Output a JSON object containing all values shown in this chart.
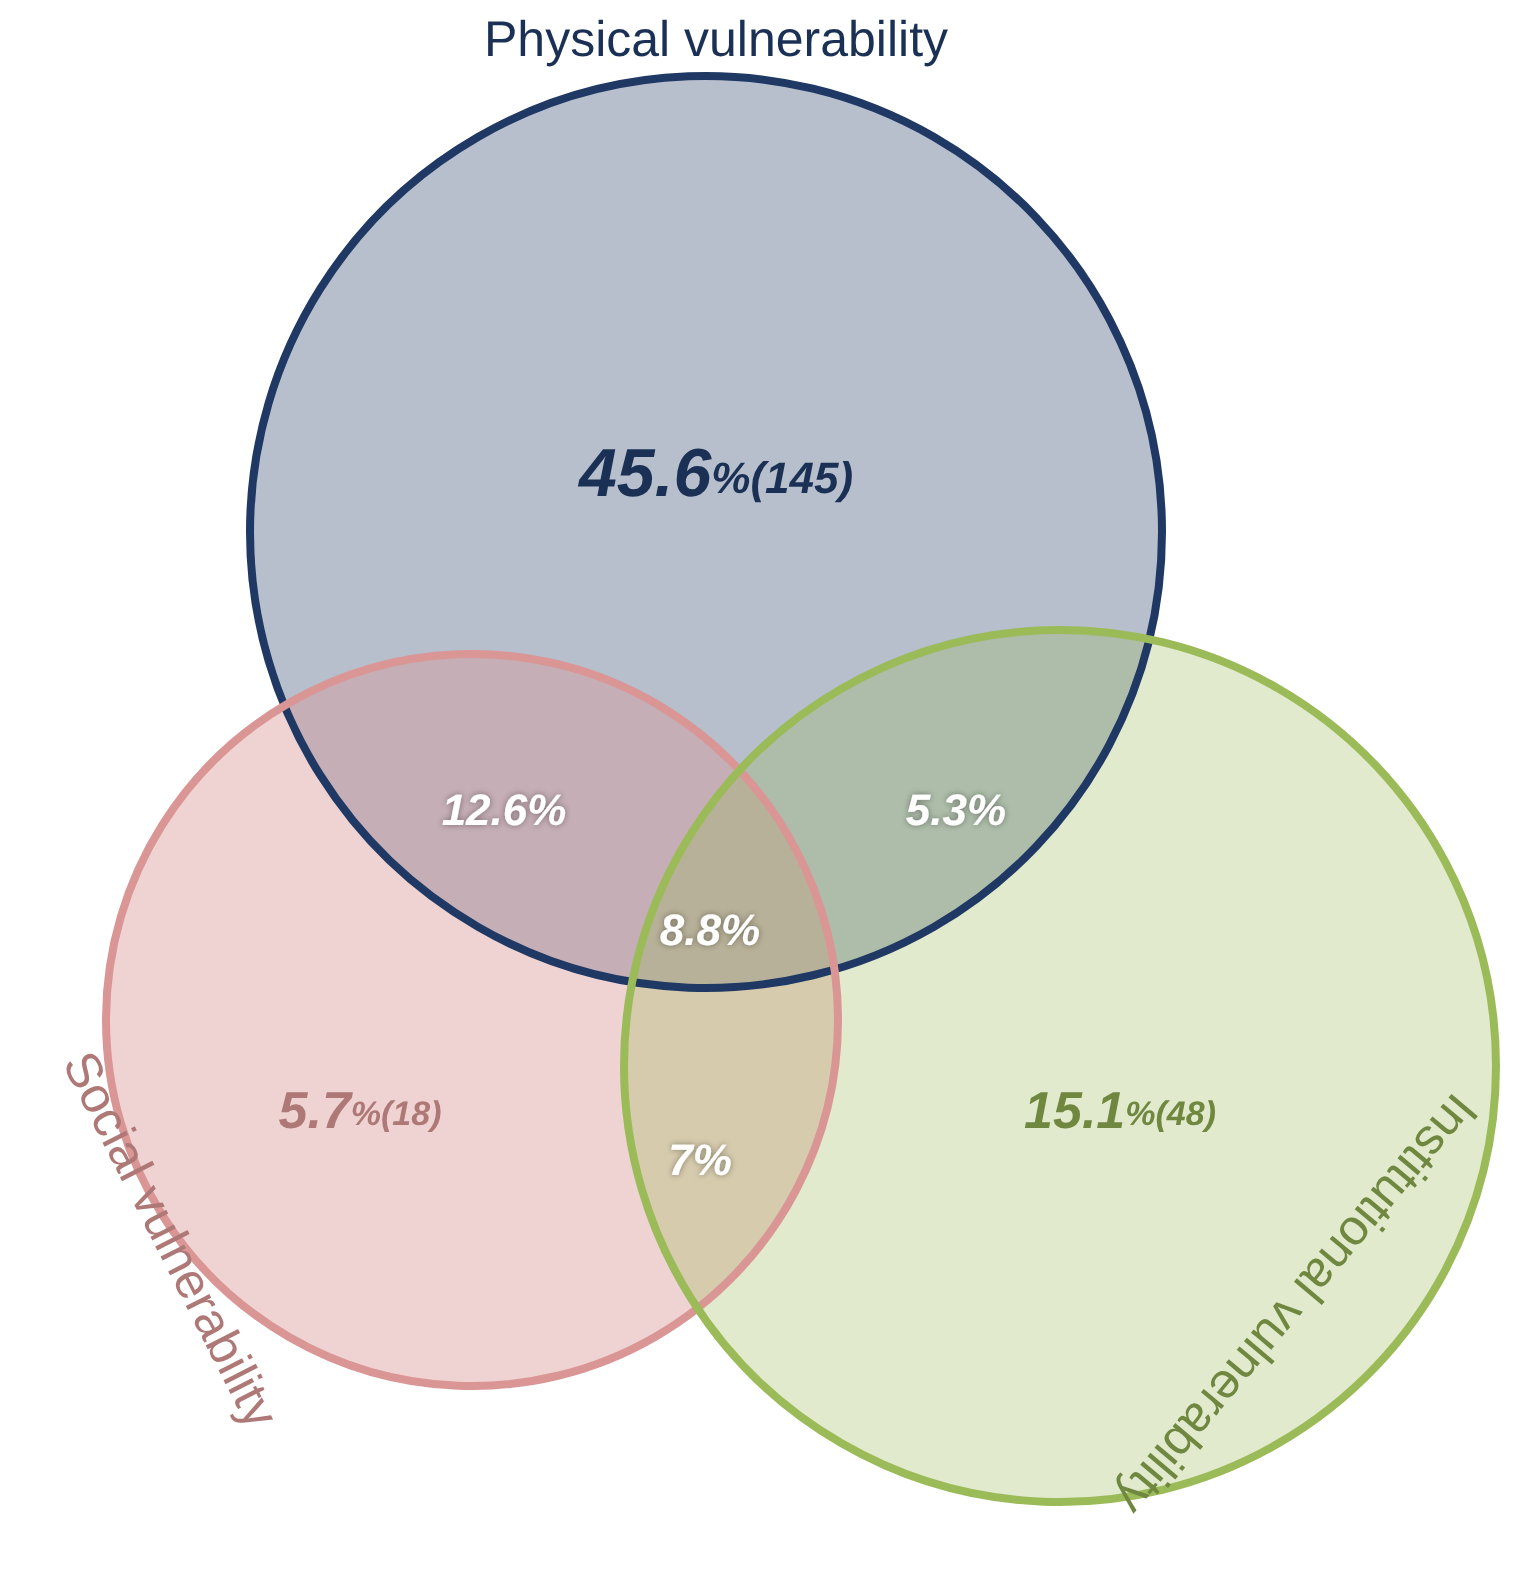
{
  "chart_data": {
    "type": "other",
    "categories": [
      "Physical vulnerability",
      "Social vulnerability",
      "Institutional vulnerability"
    ],
    "values": [
      45.6,
      5.7,
      15.1
    ],
    "value_labels": [
      "45.6%(145)",
      "5.7%(18)",
      "15.1%(48)"
    ],
    "colors": [
      "#1f3864",
      "#d99694",
      "#9bbb59"
    ],
    "annotations": [
      "12.6%",
      "5.3%",
      "8.8%",
      "7%"
    ]
  }
}
